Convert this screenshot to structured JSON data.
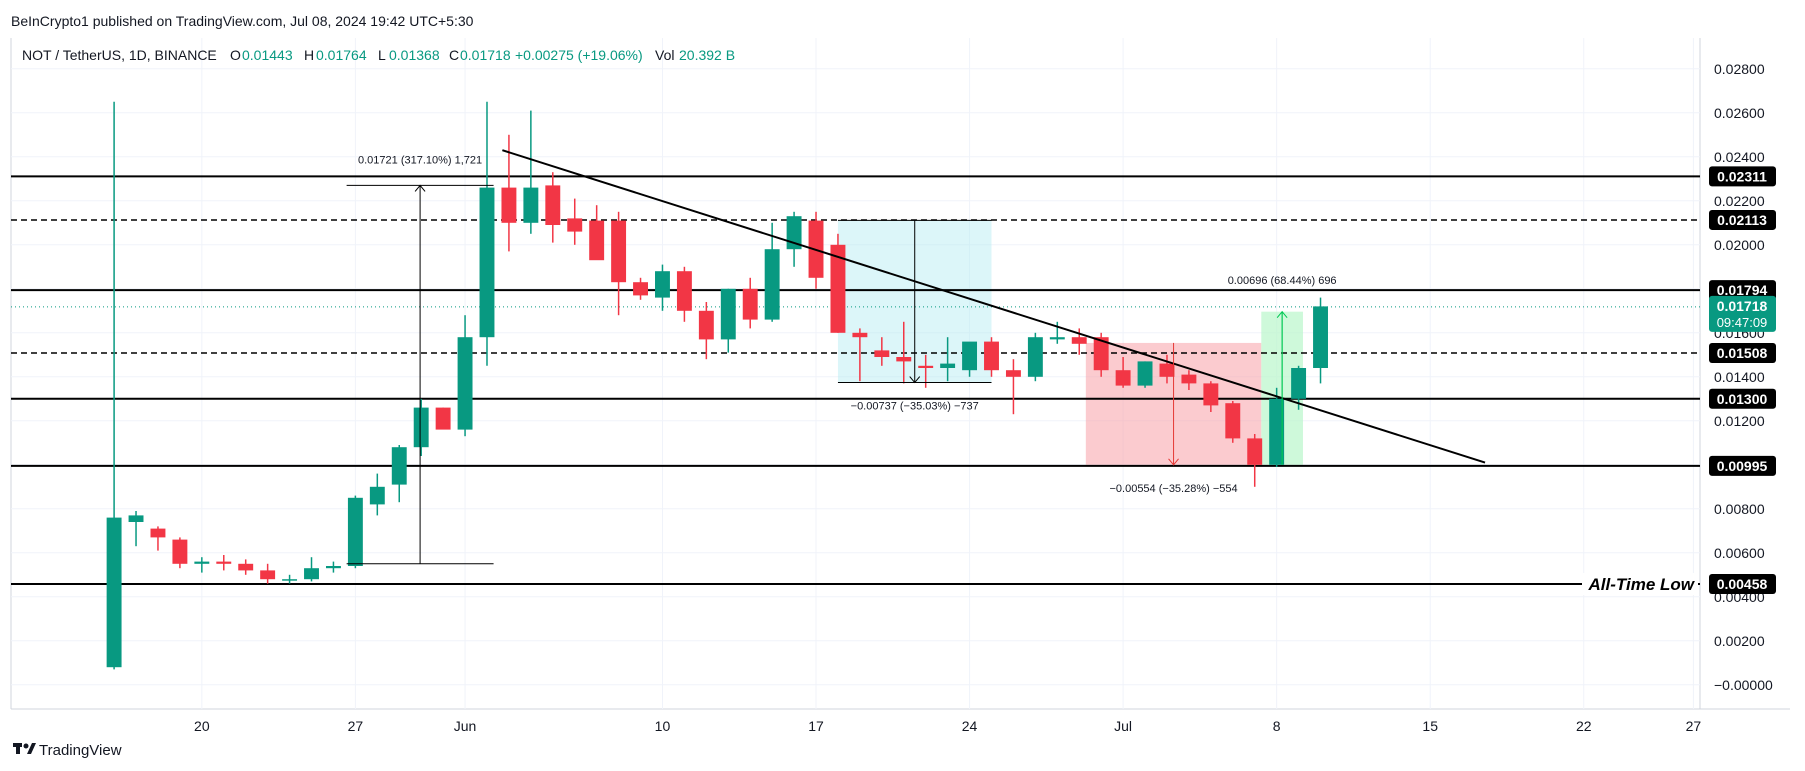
{
  "publisher": "BeInCrypto1 published on TradingView.com, Jul 08, 2024 19:42 UTC+5:30",
  "branding": "TradingView",
  "legend": {
    "symbol": "NOT / TetherUS, 1D, BINANCE",
    "o_label": "O",
    "o_val": "0.01443",
    "h_label": "H",
    "h_val": "0.01764",
    "l_label": "L",
    "l_val": "0.01368",
    "c_label": "C",
    "c_val": "0.01718",
    "change": "+0.00275 (+19.06%)",
    "vol_label": "Vol",
    "vol_val": "20.392 B"
  },
  "colors": {
    "up": "#089981",
    "down": "#f23645",
    "line": "#000000",
    "grid": "#f0f3fa"
  },
  "chart_data": {
    "type": "candlestick",
    "title": "NOT / TetherUS, 1D, BINANCE",
    "y_range": [
      -0.0011,
      0.0294
    ],
    "y_ticks": [
      0.028,
      0.026,
      0.024,
      0.022,
      0.02,
      0.018,
      0.016,
      0.014,
      0.012,
      0.01,
      0.008,
      0.006,
      0.004,
      0.002,
      -0.0
    ],
    "y_tick_labels": [
      "0.02800",
      "0.02600",
      "0.02400",
      "0.02200",
      "0.02000",
      "0.01800",
      "0.01600",
      "0.01400",
      "0.01200",
      "0.01000",
      "0.00800",
      "0.00600",
      "0.00400",
      "0.00200",
      "−0.00000"
    ],
    "x_ticks": [
      {
        "day": 20,
        "label": "20"
      },
      {
        "day": 27,
        "label": "27"
      },
      {
        "day": 32,
        "label": "Jun"
      },
      {
        "day": 41,
        "label": "10"
      },
      {
        "day": 48,
        "label": "17"
      },
      {
        "day": 55,
        "label": "24"
      },
      {
        "day": 62,
        "label": "Jul"
      },
      {
        "day": 69,
        "label": "8"
      },
      {
        "day": 76,
        "label": "15"
      },
      {
        "day": 83,
        "label": "22"
      },
      {
        "day": 88,
        "label": "27"
      }
    ],
    "x_range_days": [
      11.3,
      88.3
    ],
    "candles": [
      {
        "day": 16,
        "o": 0.0008,
        "h": 0.0265,
        "l": 0.0007,
        "c": 0.0076
      },
      {
        "day": 17,
        "o": 0.0074,
        "h": 0.0079,
        "l": 0.0063,
        "c": 0.0077
      },
      {
        "day": 18,
        "o": 0.0071,
        "h": 0.0072,
        "l": 0.0061,
        "c": 0.0067
      },
      {
        "day": 19,
        "o": 0.0066,
        "h": 0.0067,
        "l": 0.0053,
        "c": 0.0055
      },
      {
        "day": 20,
        "o": 0.0055,
        "h": 0.0058,
        "l": 0.0051,
        "c": 0.0056
      },
      {
        "day": 21,
        "o": 0.0056,
        "h": 0.0059,
        "l": 0.0052,
        "c": 0.0055
      },
      {
        "day": 22,
        "o": 0.0055,
        "h": 0.0057,
        "l": 0.005,
        "c": 0.0052
      },
      {
        "day": 23,
        "o": 0.0052,
        "h": 0.0055,
        "l": 0.0046,
        "c": 0.0048
      },
      {
        "day": 24,
        "o": 0.0048,
        "h": 0.005,
        "l": 0.0046,
        "c": 0.0048
      },
      {
        "day": 25,
        "o": 0.0048,
        "h": 0.0058,
        "l": 0.0047,
        "c": 0.0053
      },
      {
        "day": 26,
        "o": 0.0053,
        "h": 0.0056,
        "l": 0.0051,
        "c": 0.0054
      },
      {
        "day": 27,
        "o": 0.0054,
        "h": 0.0086,
        "l": 0.0053,
        "c": 0.0085
      },
      {
        "day": 28,
        "o": 0.0082,
        "h": 0.0096,
        "l": 0.0077,
        "c": 0.009
      },
      {
        "day": 29,
        "o": 0.0091,
        "h": 0.0109,
        "l": 0.0083,
        "c": 0.0108
      },
      {
        "day": 30,
        "o": 0.0108,
        "h": 0.013,
        "l": 0.0104,
        "c": 0.0126
      },
      {
        "day": 31,
        "o": 0.0126,
        "h": 0.0126,
        "l": 0.0117,
        "c": 0.0116
      },
      {
        "day": 32,
        "o": 0.0116,
        "h": 0.0168,
        "l": 0.0113,
        "c": 0.0158
      },
      {
        "day": 33,
        "o": 0.0158,
        "h": 0.0265,
        "l": 0.0145,
        "c": 0.0226
      },
      {
        "day": 34,
        "o": 0.0226,
        "h": 0.025,
        "l": 0.0197,
        "c": 0.021
      },
      {
        "day": 35,
        "o": 0.021,
        "h": 0.0261,
        "l": 0.0205,
        "c": 0.0226
      },
      {
        "day": 36,
        "o": 0.0227,
        "h": 0.0233,
        "l": 0.0201,
        "c": 0.0209
      },
      {
        "day": 37,
        "o": 0.0212,
        "h": 0.0221,
        "l": 0.02,
        "c": 0.0206
      },
      {
        "day": 38,
        "o": 0.0211,
        "h": 0.0218,
        "l": 0.0195,
        "c": 0.0193
      },
      {
        "day": 39,
        "o": 0.0211,
        "h": 0.0215,
        "l": 0.0168,
        "c": 0.0183
      },
      {
        "day": 40,
        "o": 0.0183,
        "h": 0.0185,
        "l": 0.0175,
        "c": 0.0177
      },
      {
        "day": 41,
        "o": 0.0176,
        "h": 0.0191,
        "l": 0.017,
        "c": 0.0188
      },
      {
        "day": 42,
        "o": 0.0188,
        "h": 0.019,
        "l": 0.0165,
        "c": 0.017
      },
      {
        "day": 43,
        "o": 0.017,
        "h": 0.0174,
        "l": 0.0148,
        "c": 0.0157
      },
      {
        "day": 44,
        "o": 0.0157,
        "h": 0.018,
        "l": 0.0151,
        "c": 0.018
      },
      {
        "day": 45,
        "o": 0.018,
        "h": 0.0185,
        "l": 0.0162,
        "c": 0.0166
      },
      {
        "day": 46,
        "o": 0.0166,
        "h": 0.021,
        "l": 0.0165,
        "c": 0.0198
      },
      {
        "day": 47,
        "o": 0.0198,
        "h": 0.0215,
        "l": 0.019,
        "c": 0.0213
      },
      {
        "day": 48,
        "o": 0.0211,
        "h": 0.0215,
        "l": 0.018,
        "c": 0.0185
      },
      {
        "day": 49,
        "o": 0.02,
        "h": 0.0205,
        "l": 0.016,
        "c": 0.016
      },
      {
        "day": 50,
        "o": 0.016,
        "h": 0.0162,
        "l": 0.0138,
        "c": 0.0158
      },
      {
        "day": 51,
        "o": 0.0152,
        "h": 0.0158,
        "l": 0.0145,
        "c": 0.0149
      },
      {
        "day": 52,
        "o": 0.0149,
        "h": 0.0165,
        "l": 0.0137,
        "c": 0.0147
      },
      {
        "day": 53,
        "o": 0.0145,
        "h": 0.015,
        "l": 0.0135,
        "c": 0.0144
      },
      {
        "day": 54,
        "o": 0.0144,
        "h": 0.0158,
        "l": 0.0138,
        "c": 0.0146
      },
      {
        "day": 55,
        "o": 0.0143,
        "h": 0.0155,
        "l": 0.014,
        "c": 0.0156
      },
      {
        "day": 56,
        "o": 0.0156,
        "h": 0.0158,
        "l": 0.014,
        "c": 0.0143
      },
      {
        "day": 57,
        "o": 0.0143,
        "h": 0.0148,
        "l": 0.0123,
        "c": 0.014
      },
      {
        "day": 58,
        "o": 0.014,
        "h": 0.016,
        "l": 0.0138,
        "c": 0.0158
      },
      {
        "day": 59,
        "o": 0.0157,
        "h": 0.0165,
        "l": 0.0155,
        "c": 0.0158
      },
      {
        "day": 60,
        "o": 0.0158,
        "h": 0.0162,
        "l": 0.015,
        "c": 0.0155
      },
      {
        "day": 61,
        "o": 0.0158,
        "h": 0.016,
        "l": 0.014,
        "c": 0.0143
      },
      {
        "day": 62,
        "o": 0.0143,
        "h": 0.0149,
        "l": 0.0135,
        "c": 0.0136
      },
      {
        "day": 63,
        "o": 0.0136,
        "h": 0.0147,
        "l": 0.0135,
        "c": 0.0147
      },
      {
        "day": 64,
        "o": 0.0146,
        "h": 0.015,
        "l": 0.0137,
        "c": 0.014
      },
      {
        "day": 65,
        "o": 0.0141,
        "h": 0.0143,
        "l": 0.0134,
        "c": 0.0137
      },
      {
        "day": 66,
        "o": 0.0137,
        "h": 0.0138,
        "l": 0.0124,
        "c": 0.0127
      },
      {
        "day": 67,
        "o": 0.0128,
        "h": 0.0129,
        "l": 0.011,
        "c": 0.0112
      },
      {
        "day": 68,
        "o": 0.0112,
        "h": 0.0114,
        "l": 0.009,
        "c": 0.01
      },
      {
        "day": 69,
        "o": 0.01,
        "h": 0.0135,
        "l": 0.0099,
        "c": 0.013
      },
      {
        "day": 70,
        "o": 0.013,
        "h": 0.0145,
        "l": 0.0125,
        "c": 0.0144
      },
      {
        "day": 71,
        "o": 0.0144,
        "h": 0.0176,
        "l": 0.0137,
        "c": 0.0172
      }
    ],
    "horizontal_levels": [
      {
        "value": 0.02311,
        "label": "0.02311",
        "style": "solid"
      },
      {
        "value": 0.02113,
        "label": "0.02113",
        "style": "dashed"
      },
      {
        "value": 0.01794,
        "label": "0.01794",
        "style": "solid"
      },
      {
        "value": 0.01508,
        "label": "0.01508",
        "style": "dashed"
      },
      {
        "value": 0.013,
        "label": "0.01300",
        "style": "solid"
      },
      {
        "value": 0.00995,
        "label": "0.00995",
        "style": "solid"
      },
      {
        "value": 0.00458,
        "label": "0.00458",
        "style": "solid"
      }
    ],
    "price_label": {
      "value": 0.01718,
      "price": "0.01718",
      "countdown": "09:47:09"
    },
    "all_time_low_label": "All-Time Low",
    "trendline": {
      "start": {
        "day": 33.7,
        "value": 0.0243
      },
      "end": {
        "day": 78.5,
        "value": 0.0101
      }
    },
    "measurements": [
      {
        "label": "0.01721 (317.10%) 1,721",
        "day_from": 26.6,
        "day_to": 33.3,
        "low": 0.0055,
        "high": 0.0227
      },
      {
        "label": "−0.00737 (−35.03%) −737",
        "day_from": 49,
        "day_to": 56,
        "low": 0.01374,
        "high": 0.02111
      },
      {
        "label": "−0.00554 (−35.28%) −554",
        "day_from": 60.3,
        "day_to": 68.3,
        "low": 0.01,
        "high": 0.01554
      },
      {
        "label": "0.00696 (68.44%) 696",
        "day_from": 68.3,
        "day_to": 70.2,
        "low": 0.01,
        "high": 0.01696
      }
    ]
  }
}
